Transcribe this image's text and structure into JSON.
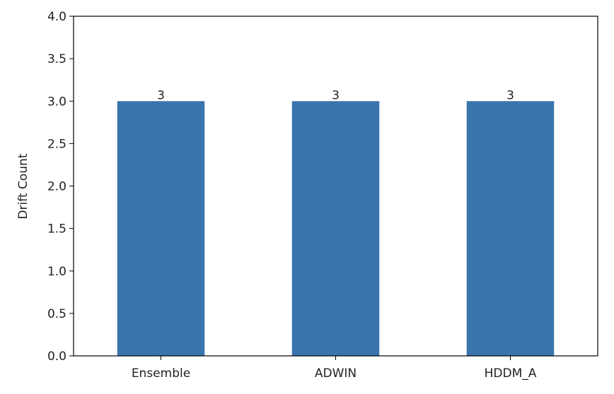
{
  "chart_data": {
    "type": "bar",
    "title": "",
    "xlabel": "",
    "ylabel": "Drift Count",
    "categories": [
      "Ensemble",
      "ADWIN",
      "HDDM_A"
    ],
    "values": [
      3,
      3,
      3
    ],
    "data_labels": [
      "3",
      "3",
      "3"
    ],
    "ylim": [
      0,
      4.0
    ],
    "yticks": [
      "0.0",
      "0.5",
      "1.0",
      "1.5",
      "2.0",
      "2.5",
      "3.0",
      "3.5",
      "4.0"
    ],
    "grid": false,
    "bar_color": "#3a74ad"
  }
}
